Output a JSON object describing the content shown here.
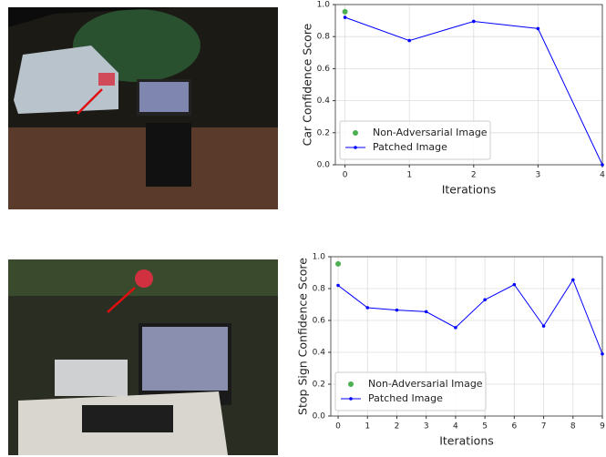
{
  "chart_data": [
    {
      "type": "line",
      "ylabel": "Car Confidence Score",
      "xlabel": "Iterations",
      "xlim": [
        -0.15,
        4
      ],
      "xticks": [
        0,
        1,
        2,
        3,
        4
      ],
      "ylim": [
        0,
        1
      ],
      "yticks": [
        {
          "value": 0,
          "label": "0.0"
        },
        0.2,
        0.4,
        0.6,
        0.8,
        {
          "value": 1,
          "label": "1.0"
        }
      ],
      "grid": true,
      "legend": "lower left",
      "series": [
        {
          "name": "Non-Adversarial Image",
          "color": "#4caf50",
          "kind": "scatter",
          "x": [
            0
          ],
          "values": [
            0.955
          ]
        },
        {
          "name": "Patched Image",
          "color": "#0000ff",
          "kind": "line",
          "x": [
            0,
            1,
            2,
            3,
            4
          ],
          "values": [
            0.92,
            0.775,
            0.895,
            0.85,
            0.0
          ]
        }
      ]
    },
    {
      "type": "line",
      "ylabel": "Stop Sign Confidence Score",
      "xlabel": "Iterations",
      "xlim": [
        -0.25,
        9
      ],
      "xticks": [
        0,
        1,
        2,
        3,
        4,
        5,
        6,
        7,
        8,
        9
      ],
      "ylim": [
        0,
        1
      ],
      "yticks": [
        {
          "value": 0,
          "label": "0.0"
        },
        0.2,
        0.4,
        0.6,
        0.8,
        {
          "value": 1,
          "label": "1.0"
        }
      ],
      "grid": true,
      "legend": "lower left",
      "series": [
        {
          "name": "Non-Adversarial Image",
          "color": "#4caf50",
          "kind": "scatter",
          "x": [
            0
          ],
          "values": [
            0.955
          ]
        },
        {
          "name": "Patched Image",
          "color": "#0000ff",
          "kind": "line",
          "x": [
            0,
            1,
            2,
            3,
            4,
            5,
            6,
            7,
            8,
            9
          ],
          "values": [
            0.82,
            0.68,
            0.665,
            0.655,
            0.555,
            0.73,
            0.825,
            0.565,
            0.855,
            0.39
          ]
        }
      ]
    }
  ]
}
